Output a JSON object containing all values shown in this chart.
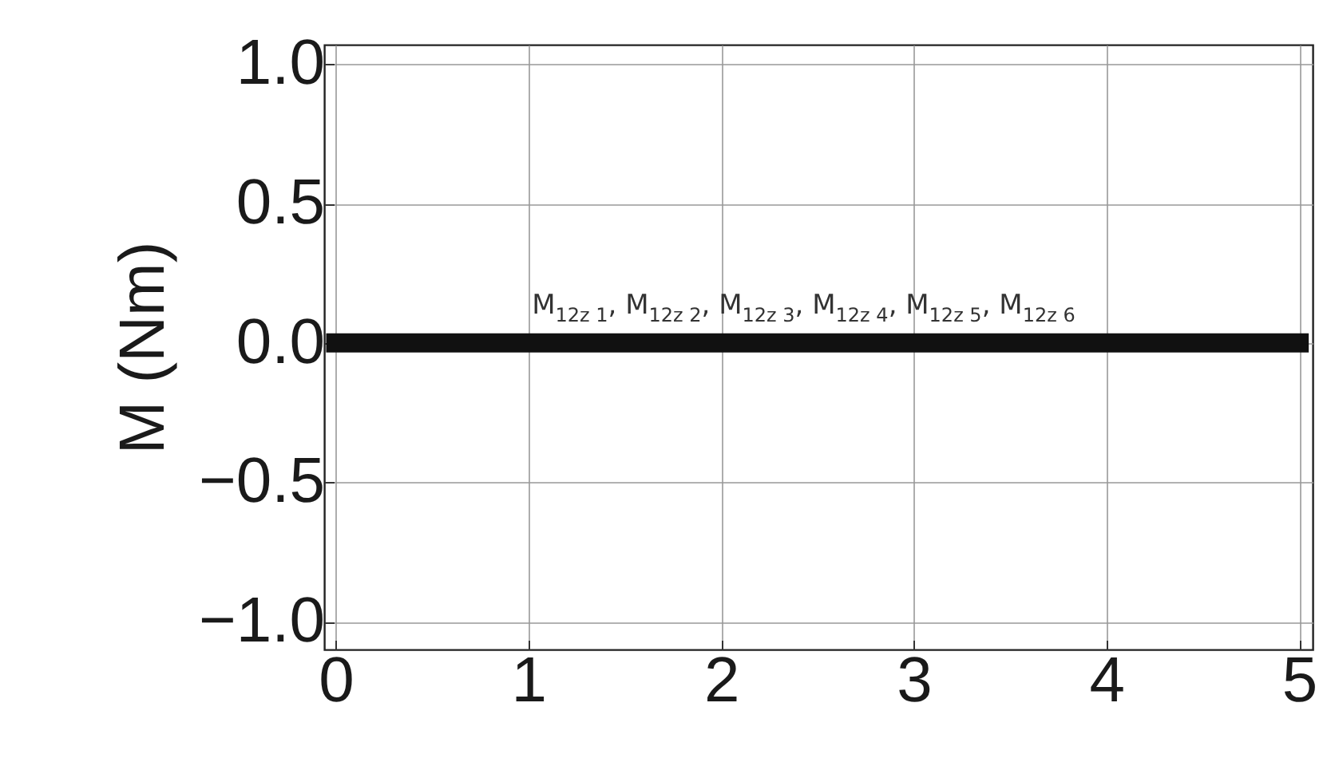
{
  "chart_data": {
    "type": "line",
    "ylabel": "M (Nm)",
    "x": [
      0,
      5
    ],
    "series": [
      {
        "color": "#111111",
        "values": [
          0,
          0
        ]
      }
    ],
    "xlim": [
      -0.06,
      5.07
    ],
    "xticks": [
      0,
      1,
      2,
      3,
      4,
      5
    ],
    "ylim": [
      -1.1,
      1.07
    ],
    "yticks": [
      {
        "value": -1,
        "label": "−1.0"
      },
      {
        "value": -0.5,
        "label": "−0.5"
      },
      {
        "value": 0,
        "label": "0.0"
      },
      {
        "value": 0.5,
        "label": "0.5"
      },
      {
        "value": 1,
        "label": "1.0"
      }
    ],
    "grid": true,
    "annotations": [
      "M$_{12z 1}$, M$_{12z 2}$, M$_{12z 3}$, M$_{12z 4}$, M$_{12z 5}$, M$_{12z 6}$"
    ]
  }
}
